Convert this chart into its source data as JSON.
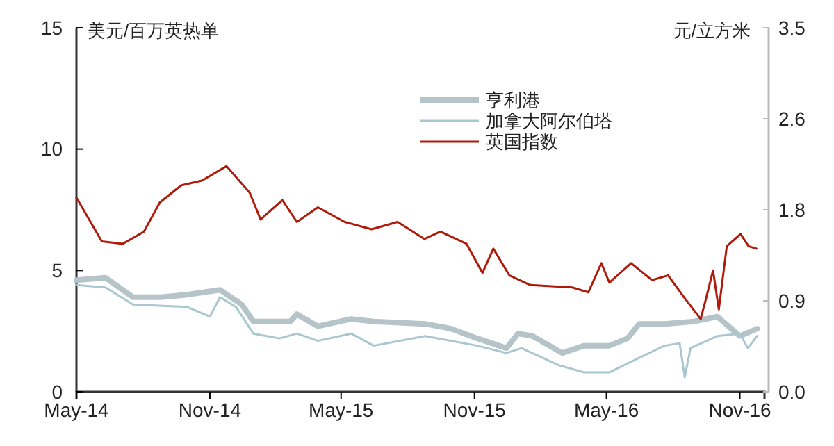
{
  "chart_data": {
    "type": "line",
    "ylabel": "美元/百万英热单",
    "y2label": "元/立方米",
    "xlim": [
      "2014-05-01",
      "2016-12-05"
    ],
    "xticks": [
      {
        "value": "2014-05-01",
        "label": "May-14"
      },
      {
        "value": "2014-11-01",
        "label": "Nov-14"
      },
      {
        "value": "2015-05-01",
        "label": "May-15"
      },
      {
        "value": "2015-11-01",
        "label": "Nov-15"
      },
      {
        "value": "2016-05-01",
        "label": "May-16"
      },
      {
        "value": "2016-11-01",
        "label": "Nov-16"
      }
    ],
    "ylim": [
      0,
      15
    ],
    "yticks": [
      0,
      5,
      10,
      15
    ],
    "y2lim": [
      0,
      3.5
    ],
    "y2ticks": [
      {
        "value": 0,
        "label": "0.0"
      },
      {
        "value": 0.875,
        "label": "0.9"
      },
      {
        "value": 1.75,
        "label": "1.8"
      },
      {
        "value": 2.625,
        "label": "2.6"
      },
      {
        "value": 3.5,
        "label": "3.5"
      }
    ],
    "legend": "top right",
    "grid": false,
    "series": [
      {
        "name": "亨利港",
        "color": "#b4c4c8",
        "x": [
          "2014-05-01",
          "2014-06-10",
          "2014-07-18",
          "2014-08-25",
          "2014-09-30",
          "2014-11-15",
          "2014-12-15",
          "2014-12-31",
          "2015-02-20",
          "2015-03-01",
          "2015-03-30",
          "2015-05-15",
          "2015-06-15",
          "2015-08-25",
          "2015-09-30",
          "2015-11-05",
          "2015-12-15",
          "2015-12-31",
          "2016-01-20",
          "2016-03-01",
          "2016-03-31",
          "2016-05-05",
          "2016-05-30",
          "2016-06-15",
          "2016-07-20",
          "2016-08-30",
          "2016-10-01",
          "2016-11-01",
          "2016-11-25"
        ],
        "values": [
          4.6,
          4.7,
          3.9,
          3.9,
          4.0,
          4.2,
          3.6,
          2.9,
          2.9,
          3.2,
          2.7,
          3.0,
          2.9,
          2.8,
          2.6,
          2.2,
          1.8,
          2.4,
          2.3,
          1.6,
          1.9,
          1.9,
          2.2,
          2.8,
          2.8,
          2.9,
          3.1,
          2.3,
          2.6
        ]
      },
      {
        "name": "加拿大阿尔伯塔",
        "color": "#a9c7d0",
        "x": [
          "2014-05-01",
          "2014-06-10",
          "2014-07-18",
          "2014-09-30",
          "2014-11-01",
          "2014-11-15",
          "2014-12-07",
          "2014-12-31",
          "2015-02-05",
          "2015-03-01",
          "2015-03-30",
          "2015-05-15",
          "2015-06-15",
          "2015-08-25",
          "2015-11-05",
          "2015-12-15",
          "2016-01-05",
          "2016-02-25",
          "2016-03-31",
          "2016-05-05",
          "2016-06-15",
          "2016-07-20",
          "2016-08-10",
          "2016-08-17",
          "2016-08-25",
          "2016-10-01",
          "2016-11-01",
          "2016-11-12",
          "2016-11-25"
        ],
        "values": [
          4.4,
          4.3,
          3.6,
          3.5,
          3.1,
          3.9,
          3.5,
          2.4,
          2.2,
          2.4,
          2.1,
          2.4,
          1.9,
          2.3,
          1.9,
          1.6,
          1.8,
          1.1,
          0.8,
          0.8,
          1.4,
          1.9,
          2.0,
          0.6,
          1.8,
          2.3,
          2.4,
          1.8,
          2.3
        ]
      },
      {
        "name": "英国指数",
        "color": "#b01a0a",
        "x": [
          "2014-05-01",
          "2014-06-05",
          "2014-07-04",
          "2014-08-02",
          "2014-08-24",
          "2014-09-22",
          "2014-10-21",
          "2014-11-24",
          "2014-12-26",
          "2015-01-10",
          "2015-02-09",
          "2015-03-01",
          "2015-03-30",
          "2015-05-06",
          "2015-06-12",
          "2015-07-18",
          "2015-08-24",
          "2015-09-15",
          "2015-10-21",
          "2015-11-12",
          "2015-11-27",
          "2015-12-19",
          "2016-01-17",
          "2016-03-15",
          "2016-04-06",
          "2016-04-24",
          "2016-05-05",
          "2016-06-04",
          "2016-07-03",
          "2016-07-25",
          "2016-08-16",
          "2016-09-08",
          "2016-09-15",
          "2016-09-25",
          "2016-10-03",
          "2016-10-14",
          "2016-11-02",
          "2016-11-13",
          "2016-11-24"
        ],
        "values": [
          8.0,
          6.2,
          6.1,
          6.6,
          7.8,
          8.5,
          8.7,
          9.3,
          8.2,
          7.1,
          7.9,
          7.0,
          7.6,
          7.0,
          6.7,
          7.0,
          6.3,
          6.6,
          6.1,
          4.9,
          5.9,
          4.8,
          4.4,
          4.3,
          4.1,
          5.3,
          4.5,
          5.3,
          4.6,
          4.8,
          3.9,
          3.0,
          3.8,
          5.0,
          3.4,
          6.0,
          6.5,
          6.0,
          5.9
        ]
      }
    ]
  }
}
